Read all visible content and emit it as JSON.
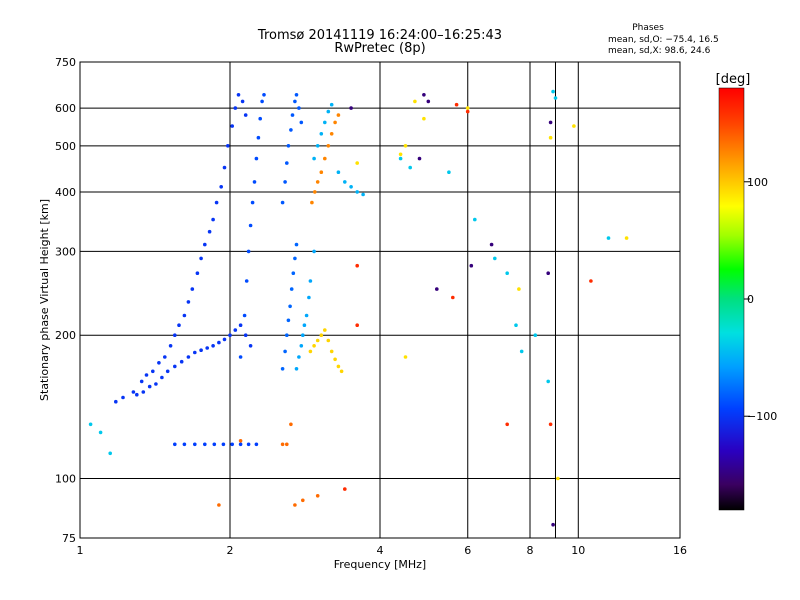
{
  "chart_data": {
    "type": "scatter",
    "title_line1": "Tromsø 20141119 16:24:00–16:25:43",
    "title_line2": "RwPretec (8p)",
    "xlabel": "Frequency [MHz]",
    "ylabel": "Stationary phase Virtual Height [km]",
    "x_scale": "log",
    "y_scale": "log",
    "xlim": [
      1,
      16
    ],
    "ylim": [
      75,
      750
    ],
    "x_ticks": [
      1,
      2,
      4,
      6,
      8,
      10,
      16
    ],
    "x_tick_labels": [
      "1",
      "2",
      "4",
      "6",
      "8",
      "10",
      "16"
    ],
    "x_grid_extra": [
      9
    ],
    "y_ticks": [
      75,
      100,
      200,
      300,
      400,
      500,
      600,
      750
    ],
    "y_tick_labels": [
      "75",
      "100",
      "200",
      "300",
      "400",
      "500",
      "600",
      "750"
    ],
    "grid": true,
    "stats": {
      "header": "Phases",
      "line_o": "mean, sd,O: −75.4, 16.5",
      "line_x": "mean, sd,X:  98.6, 24.6"
    },
    "colorbar": {
      "unit_label": "[deg]",
      "range": [
        -180,
        180
      ],
      "ticks": [
        100,
        0,
        -100
      ],
      "tick_labels": [
        "100",
        "0",
        "−100"
      ]
    },
    "series": [
      {
        "phase": -100,
        "points": [
          [
            1.18,
            145
          ],
          [
            1.22,
            148
          ],
          [
            1.28,
            152
          ],
          [
            1.33,
            160
          ],
          [
            1.36,
            165
          ],
          [
            1.4,
            168
          ],
          [
            1.44,
            175
          ],
          [
            1.48,
            180
          ],
          [
            1.52,
            190
          ],
          [
            1.55,
            200
          ],
          [
            1.58,
            210
          ],
          [
            1.62,
            220
          ],
          [
            1.65,
            235
          ],
          [
            1.68,
            250
          ],
          [
            1.72,
            270
          ],
          [
            1.75,
            290
          ],
          [
            1.78,
            310
          ],
          [
            1.82,
            330
          ],
          [
            1.85,
            350
          ],
          [
            1.88,
            380
          ],
          [
            1.92,
            410
          ],
          [
            1.95,
            450
          ],
          [
            1.98,
            500
          ],
          [
            2.02,
            550
          ],
          [
            2.05,
            600
          ],
          [
            2.08,
            640
          ],
          [
            2.12,
            620
          ],
          [
            2.15,
            580
          ]
        ]
      },
      {
        "phase": -100,
        "points": [
          [
            1.3,
            150
          ],
          [
            1.34,
            152
          ],
          [
            1.38,
            156
          ],
          [
            1.42,
            158
          ],
          [
            1.46,
            163
          ],
          [
            1.5,
            168
          ],
          [
            1.55,
            172
          ],
          [
            1.6,
            176
          ],
          [
            1.65,
            180
          ],
          [
            1.7,
            184
          ],
          [
            1.75,
            186
          ],
          [
            1.8,
            188
          ],
          [
            1.85,
            190
          ],
          [
            1.9,
            193
          ],
          [
            1.95,
            196
          ],
          [
            2.0,
            200
          ],
          [
            2.05,
            205
          ],
          [
            2.1,
            210
          ],
          [
            2.15,
            200
          ],
          [
            2.2,
            190
          ]
        ]
      },
      {
        "phase": -95,
        "points": [
          [
            1.55,
            118
          ],
          [
            1.62,
            118
          ],
          [
            1.7,
            118
          ],
          [
            1.78,
            118
          ],
          [
            1.86,
            118
          ],
          [
            1.94,
            118
          ],
          [
            2.02,
            118
          ],
          [
            2.1,
            118
          ],
          [
            2.18,
            118
          ],
          [
            2.26,
            118
          ]
        ]
      },
      {
        "phase": -90,
        "points": [
          [
            2.1,
            180
          ],
          [
            2.14,
            220
          ],
          [
            2.16,
            260
          ],
          [
            2.18,
            300
          ],
          [
            2.2,
            340
          ],
          [
            2.22,
            380
          ],
          [
            2.24,
            420
          ],
          [
            2.26,
            470
          ],
          [
            2.28,
            520
          ],
          [
            2.3,
            570
          ],
          [
            2.32,
            620
          ],
          [
            2.34,
            640
          ]
        ]
      },
      {
        "phase": -85,
        "points": [
          [
            2.55,
            380
          ],
          [
            2.58,
            420
          ],
          [
            2.6,
            460
          ],
          [
            2.62,
            500
          ],
          [
            2.65,
            540
          ],
          [
            2.67,
            580
          ],
          [
            2.7,
            620
          ],
          [
            2.72,
            640
          ],
          [
            2.75,
            600
          ],
          [
            2.78,
            560
          ]
        ]
      },
      {
        "phase": -80,
        "points": [
          [
            2.55,
            170
          ],
          [
            2.58,
            185
          ],
          [
            2.6,
            200
          ],
          [
            2.62,
            215
          ],
          [
            2.64,
            230
          ],
          [
            2.66,
            250
          ],
          [
            2.68,
            270
          ],
          [
            2.7,
            290
          ],
          [
            2.72,
            310
          ]
        ]
      },
      {
        "phase": -55,
        "points": [
          [
            2.72,
            170
          ],
          [
            2.75,
            180
          ],
          [
            2.78,
            190
          ],
          [
            2.8,
            200
          ],
          [
            2.82,
            210
          ],
          [
            2.85,
            220
          ],
          [
            2.88,
            240
          ],
          [
            2.9,
            260
          ],
          [
            2.95,
            300
          ]
        ]
      },
      {
        "phase": -50,
        "points": [
          [
            2.95,
            470
          ],
          [
            3.0,
            500
          ],
          [
            3.05,
            530
          ],
          [
            3.1,
            560
          ],
          [
            3.15,
            590
          ],
          [
            3.2,
            610
          ],
          [
            3.3,
            440
          ],
          [
            3.4,
            420
          ],
          [
            3.5,
            410
          ],
          [
            3.6,
            400
          ],
          [
            3.7,
            395
          ]
        ]
      },
      {
        "phase": 125,
        "points": [
          [
            2.92,
            380
          ],
          [
            2.96,
            400
          ],
          [
            3.0,
            420
          ],
          [
            3.05,
            440
          ],
          [
            3.1,
            470
          ],
          [
            3.15,
            500
          ],
          [
            3.2,
            530
          ],
          [
            3.25,
            560
          ],
          [
            3.3,
            580
          ]
        ]
      },
      {
        "phase": 95,
        "points": [
          [
            2.9,
            185
          ],
          [
            2.95,
            190
          ],
          [
            3.0,
            195
          ],
          [
            3.05,
            200
          ],
          [
            3.1,
            205
          ],
          [
            3.15,
            195
          ],
          [
            3.2,
            185
          ],
          [
            3.25,
            178
          ],
          [
            3.3,
            172
          ],
          [
            3.35,
            168
          ]
        ]
      },
      {
        "phase": 135,
        "points": [
          [
            2.55,
            118
          ],
          [
            2.6,
            118
          ],
          [
            2.65,
            130
          ],
          [
            2.7,
            88
          ],
          [
            2.8,
            90
          ],
          [
            3.0,
            92
          ],
          [
            1.9,
            88
          ],
          [
            2.1,
            120
          ]
        ]
      },
      {
        "phase": -40,
        "points": [
          [
            1.05,
            130
          ],
          [
            1.1,
            125
          ],
          [
            1.15,
            113
          ],
          [
            4.4,
            470
          ],
          [
            4.6,
            450
          ],
          [
            5.5,
            440
          ],
          [
            6.2,
            350
          ],
          [
            6.8,
            290
          ],
          [
            7.2,
            270
          ],
          [
            7.5,
            210
          ],
          [
            7.7,
            185
          ],
          [
            8.2,
            200
          ],
          [
            8.7,
            160
          ],
          [
            8.9,
            650
          ],
          [
            9.0,
            630
          ],
          [
            11.5,
            320
          ]
        ]
      },
      {
        "phase": 90,
        "points": [
          [
            4.4,
            480
          ],
          [
            4.5,
            500
          ],
          [
            4.7,
            620
          ],
          [
            6.0,
            600
          ],
          [
            7.6,
            250
          ],
          [
            8.8,
            520
          ],
          [
            9.1,
            100
          ],
          [
            9.8,
            550
          ],
          [
            12.5,
            320
          ],
          [
            4.5,
            180
          ],
          [
            3.6,
            460
          ],
          [
            4.9,
            570
          ]
        ]
      },
      {
        "phase": -150,
        "points": [
          [
            4.9,
            640
          ],
          [
            5.0,
            620
          ],
          [
            4.8,
            470
          ],
          [
            6.1,
            280
          ],
          [
            6.7,
            310
          ],
          [
            8.7,
            270
          ],
          [
            8.8,
            560
          ],
          [
            8.9,
            80
          ],
          [
            3.5,
            600
          ],
          [
            5.2,
            250
          ]
        ]
      },
      {
        "phase": 160,
        "points": [
          [
            5.7,
            610
          ],
          [
            6.0,
            590
          ],
          [
            7.2,
            130
          ],
          [
            8.8,
            130
          ],
          [
            10.6,
            260
          ],
          [
            3.6,
            210
          ],
          [
            3.6,
            280
          ],
          [
            3.4,
            95
          ],
          [
            5.6,
            240
          ]
        ]
      }
    ]
  }
}
